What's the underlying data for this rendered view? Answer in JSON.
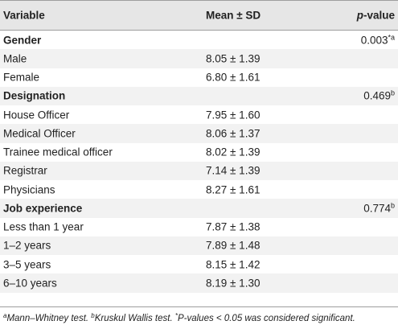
{
  "header": {
    "variable": "Variable",
    "mean_sd": "Mean ± SD",
    "p_italic": "p",
    "p_rest": "-value"
  },
  "rows": [
    {
      "label": "Gender",
      "group": true,
      "mean": "",
      "p": "0.003",
      "p_sup": "*a"
    },
    {
      "label": "Male",
      "group": false,
      "mean": "8.05 ± 1.39",
      "p": "",
      "p_sup": ""
    },
    {
      "label": "Female",
      "group": false,
      "mean": "6.80 ± 1.61",
      "p": "",
      "p_sup": ""
    },
    {
      "label": "Designation",
      "group": true,
      "mean": "",
      "p": "0.469",
      "p_sup": "b"
    },
    {
      "label": "House Officer",
      "group": false,
      "mean": "7.95 ± 1.60",
      "p": "",
      "p_sup": ""
    },
    {
      "label": "Medical Officer",
      "group": false,
      "mean": "8.06 ± 1.37",
      "p": "",
      "p_sup": ""
    },
    {
      "label": "Trainee medical officer",
      "group": false,
      "mean": "8.02 ± 1.39",
      "p": "",
      "p_sup": ""
    },
    {
      "label": "Registrar",
      "group": false,
      "mean": "7.14 ± 1.39",
      "p": "",
      "p_sup": ""
    },
    {
      "label": "Physicians",
      "group": false,
      "mean": "8.27 ± 1.61",
      "p": "",
      "p_sup": ""
    },
    {
      "label": "Job experience",
      "group": true,
      "mean": "",
      "p": "0.774",
      "p_sup": "b"
    },
    {
      "label": "Less than 1 year",
      "group": false,
      "mean": "7.87 ± 1.38",
      "p": "",
      "p_sup": ""
    },
    {
      "label": "1–2 years",
      "group": false,
      "mean": "7.89 ± 1.48",
      "p": "",
      "p_sup": ""
    },
    {
      "label": "3–5 years",
      "group": false,
      "mean": "8.15 ± 1.42",
      "p": "",
      "p_sup": ""
    },
    {
      "label": "6–10 years",
      "group": false,
      "mean": "8.19 ± 1.30",
      "p": "",
      "p_sup": ""
    }
  ],
  "footnote": {
    "a_mark": "a",
    "a_text": "Mann–Whitney test. ",
    "b_mark": "b",
    "b_text": "Kruskul Wallis test. ",
    "star_mark": "*",
    "star_text": "P-values < 0.05 was considered significant."
  }
}
